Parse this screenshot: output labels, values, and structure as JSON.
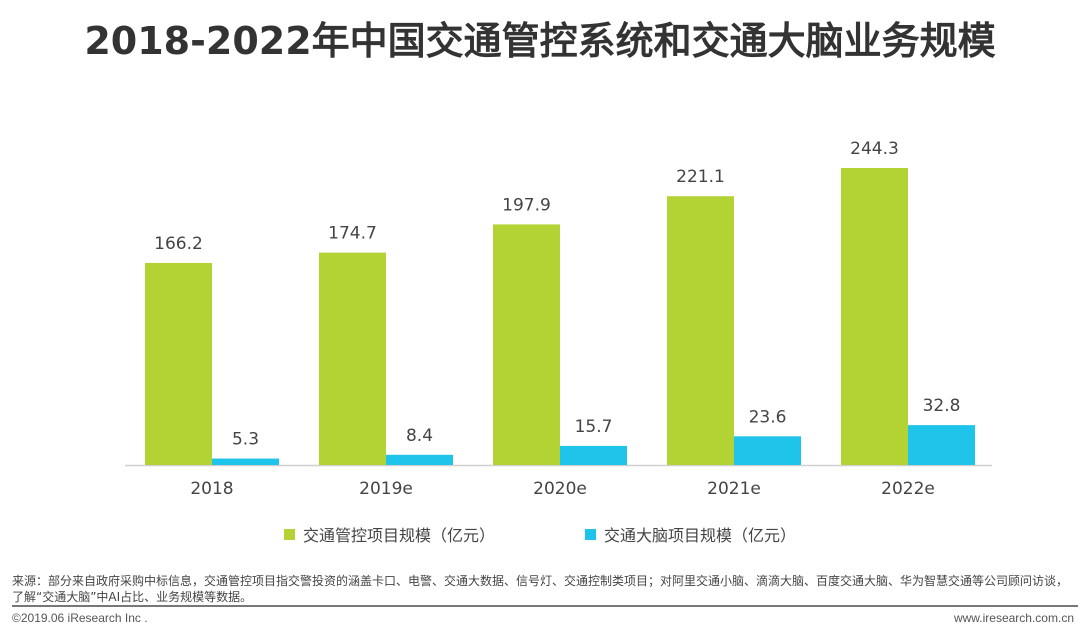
{
  "chart_data": {
    "type": "bar",
    "title": "2018-2022年中国交通管控系统和交通大脑业务规模",
    "categories": [
      "2018",
      "2019e",
      "2020e",
      "2021e",
      "2022e"
    ],
    "series": [
      {
        "name": "交通管控项目规模（亿元）",
        "color": "#b3d335",
        "values": [
          166.2,
          174.7,
          197.9,
          221.1,
          244.3
        ]
      },
      {
        "name": "交通大脑项目规模（亿元）",
        "color": "#1fc4eb",
        "values": [
          5.3,
          8.4,
          15.7,
          23.6,
          32.8
        ]
      }
    ],
    "value_labels": {
      "s0": [
        "166.2",
        "174.7",
        "197.9",
        "221.1",
        "244.3"
      ],
      "s1": [
        "5.3",
        "8.4",
        "15.7",
        "23.6",
        "32.8"
      ]
    },
    "xlabel": "",
    "ylabel": "",
    "ylim": [
      0,
      250
    ],
    "grid": false,
    "legend_placement": "bottom"
  },
  "footer": {
    "source": "来源：部分来自政府采购中标信息，交通管控项目指交警投资的涵盖卡口、电警、交通大数据、信号灯、交通控制类项目；对阿里交通小脑、滴滴大脑、百度交通大脑、华为智慧交通等公司顾问访谈，了解“交通大脑”中AI占比、业务规模等数据。",
    "copyright": "©2019.06 iResearch Inc .",
    "website": "www.iresearch.com.cn"
  }
}
